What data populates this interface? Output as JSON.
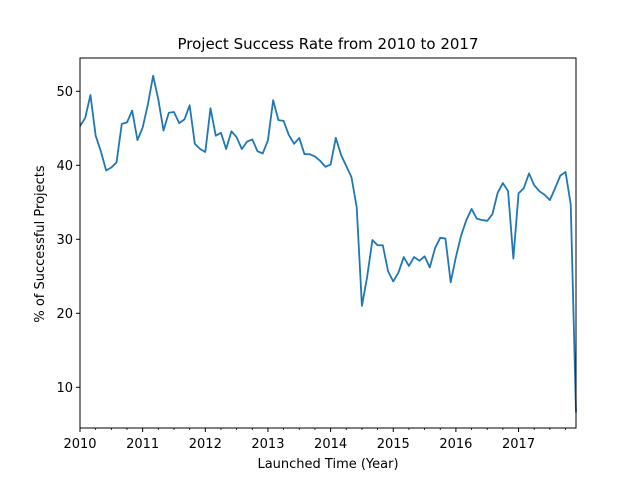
{
  "colors": {
    "series": "#1f77b4",
    "axes": "#000000",
    "background": "#ffffff"
  },
  "chart_data": {
    "type": "line",
    "title": "Project Success Rate from 2010 to 2017",
    "xlabel": "Launched Time (Year)",
    "ylabel": "% of Successful Projects",
    "xlim": [
      2010.0,
      2017.917
    ],
    "ylim": [
      4.5,
      54.5
    ],
    "x_ticks": [
      2010,
      2011,
      2012,
      2013,
      2014,
      2015,
      2016,
      2017
    ],
    "x_tick_labels": [
      "2010",
      "2011",
      "2012",
      "2013",
      "2014",
      "2015",
      "2016",
      "2017"
    ],
    "x_minor_ticks": true,
    "y_ticks": [
      10,
      20,
      30,
      40,
      50
    ],
    "y_tick_labels": [
      "10",
      "20",
      "30",
      "40",
      "50"
    ],
    "grid": false,
    "legend": "none",
    "series": [
      {
        "x": [
          2010.0,
          2010.083,
          2010.167,
          2010.25,
          2010.333,
          2010.417,
          2010.5,
          2010.583,
          2010.667,
          2010.75,
          2010.833,
          2010.917,
          2011.0,
          2011.083,
          2011.167,
          2011.25,
          2011.333,
          2011.417,
          2011.5,
          2011.583,
          2011.667,
          2011.75,
          2011.833,
          2011.917,
          2012.0,
          2012.083,
          2012.167,
          2012.25,
          2012.333,
          2012.417,
          2012.5,
          2012.583,
          2012.667,
          2012.75,
          2012.833,
          2012.917,
          2013.0,
          2013.083,
          2013.167,
          2013.25,
          2013.333,
          2013.417,
          2013.5,
          2013.583,
          2013.667,
          2013.75,
          2013.833,
          2013.917,
          2014.0,
          2014.083,
          2014.167,
          2014.25,
          2014.333,
          2014.417,
          2014.5,
          2014.583,
          2014.667,
          2014.75,
          2014.833,
          2014.917,
          2015.0,
          2015.083,
          2015.167,
          2015.25,
          2015.333,
          2015.417,
          2015.5,
          2015.583,
          2015.667,
          2015.75,
          2015.833,
          2015.917,
          2016.0,
          2016.083,
          2016.167,
          2016.25,
          2016.333,
          2016.417,
          2016.5,
          2016.583,
          2016.667,
          2016.75,
          2016.833,
          2016.917,
          2017.0,
          2017.083,
          2017.167,
          2017.25,
          2017.333,
          2017.417,
          2017.5,
          2017.583,
          2017.667,
          2017.75,
          2017.833,
          2017.917
        ],
        "y": [
          45.3,
          46.4,
          49.5,
          44.0,
          41.9,
          39.3,
          39.7,
          40.4,
          45.6,
          45.8,
          47.4,
          43.4,
          45.1,
          48.2,
          52.1,
          48.9,
          44.7,
          47.1,
          47.2,
          45.7,
          46.2,
          48.1,
          42.9,
          42.2,
          41.8,
          47.7,
          44.0,
          44.4,
          42.2,
          44.6,
          43.8,
          42.2,
          43.2,
          43.5,
          41.9,
          41.6,
          43.4,
          48.8,
          46.1,
          46.0,
          44.1,
          42.9,
          43.7,
          41.5,
          41.5,
          41.2,
          40.6,
          39.8,
          40.1,
          43.7,
          41.4,
          39.9,
          38.4,
          34.3,
          21.0,
          24.9,
          29.9,
          29.2,
          29.2,
          25.7,
          24.3,
          25.5,
          27.6,
          26.4,
          27.6,
          27.1,
          27.7,
          26.2,
          28.8,
          30.2,
          30.1,
          24.2,
          27.6,
          30.5,
          32.6,
          34.1,
          32.8,
          32.6,
          32.5,
          33.4,
          36.3,
          37.6,
          36.5,
          27.4,
          36.2,
          36.9,
          38.9,
          37.3,
          36.5,
          36.0,
          35.3,
          36.9,
          38.6,
          39.1,
          34.7,
          6.6
        ]
      }
    ]
  }
}
